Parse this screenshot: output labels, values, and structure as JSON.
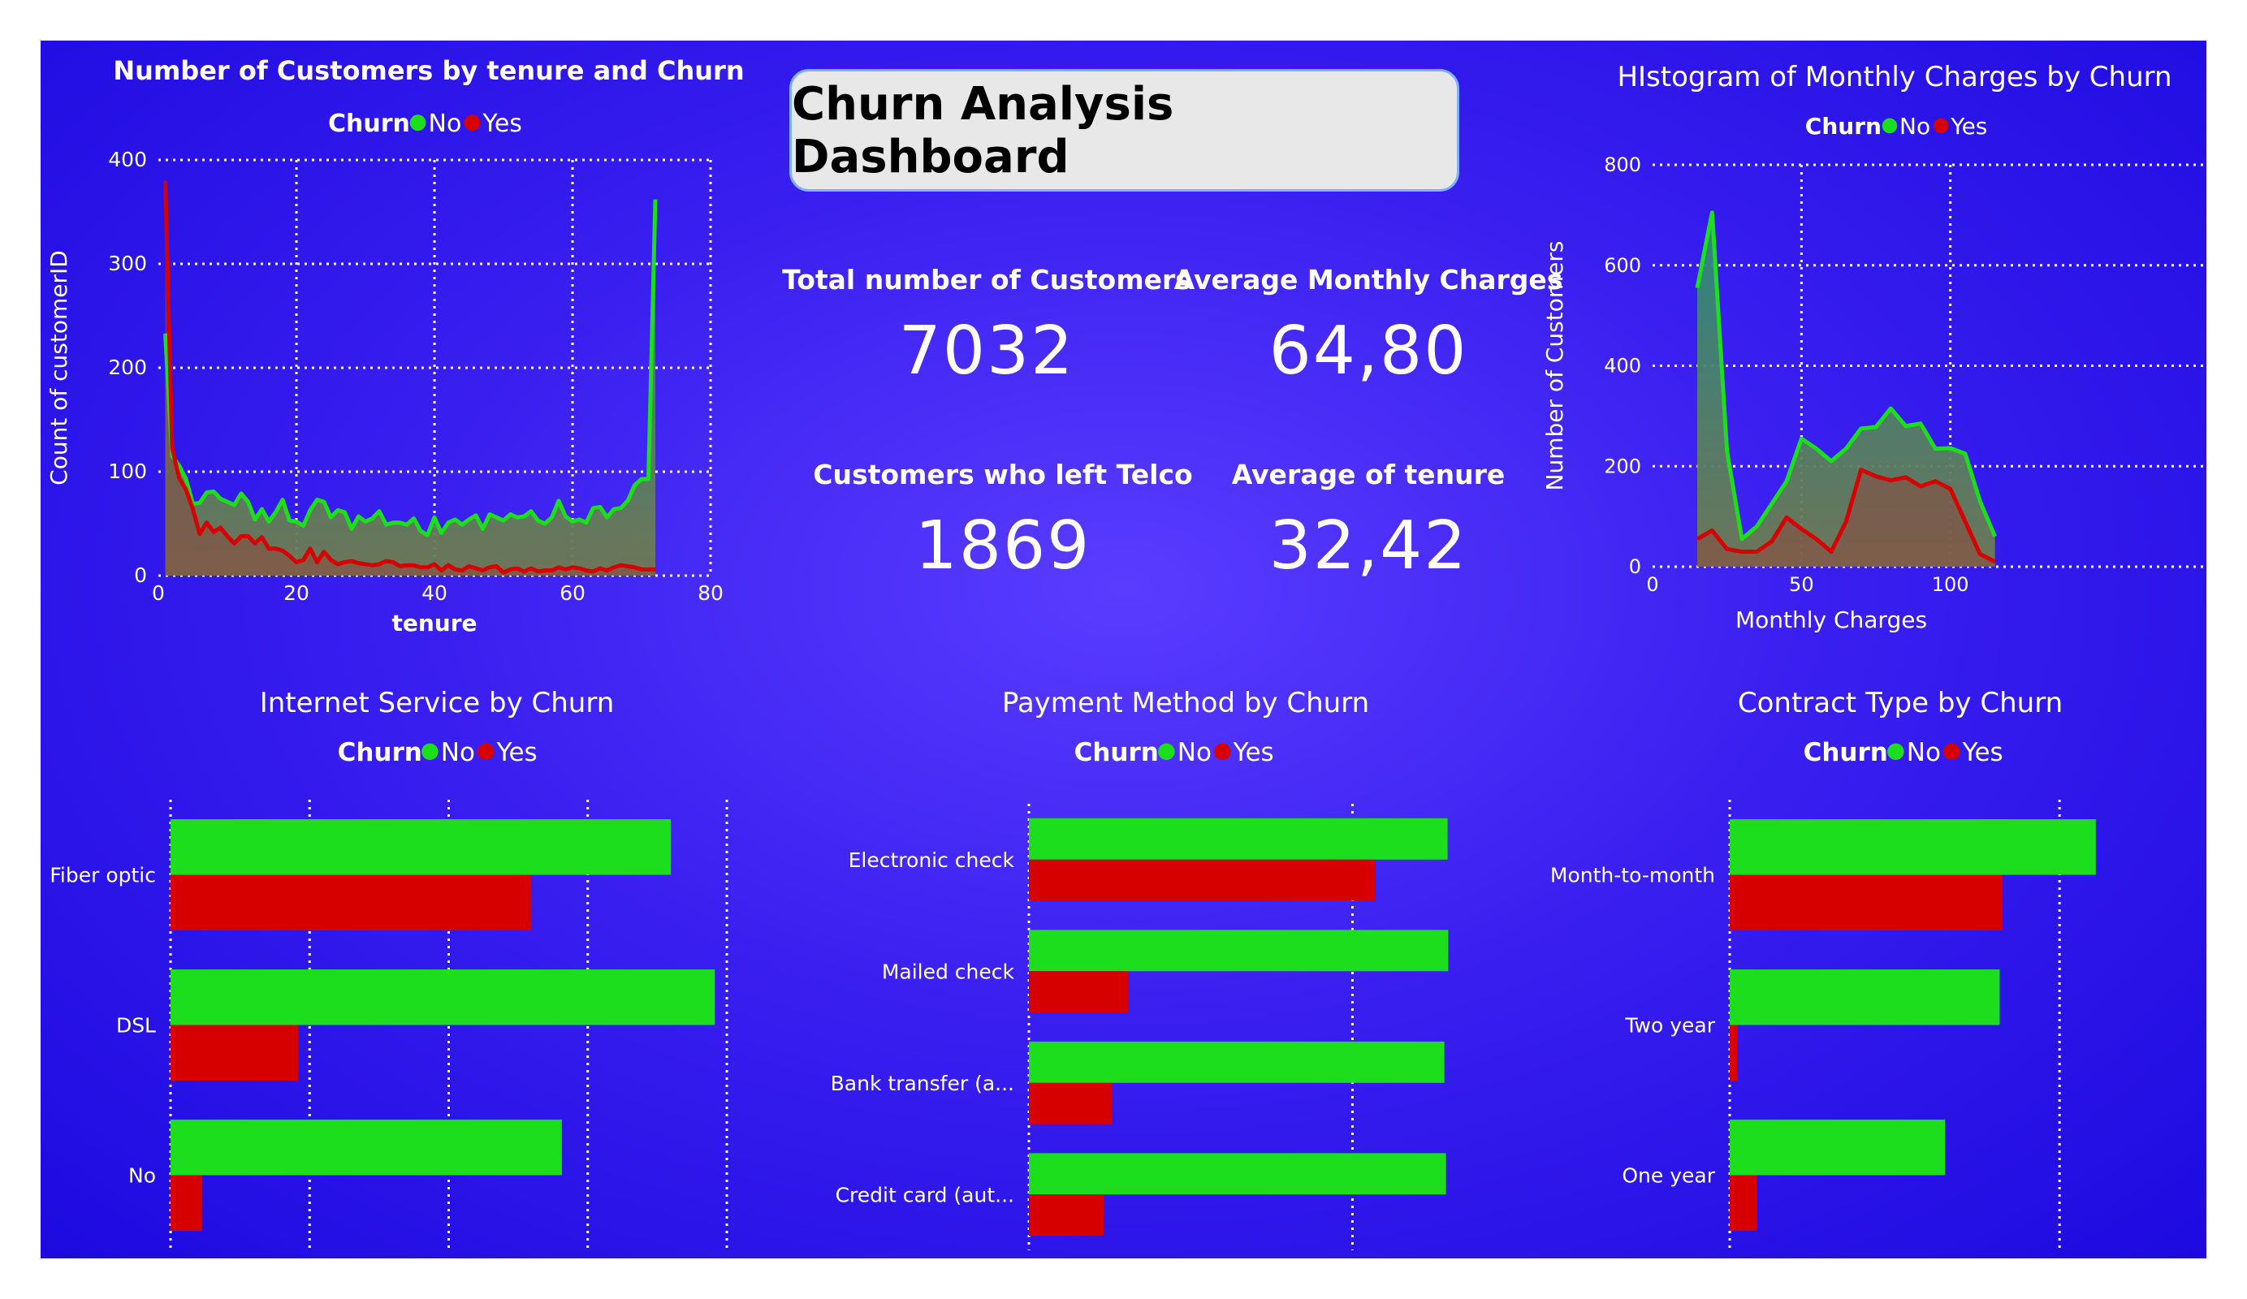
{
  "dashboard": {
    "title": "Churn Analysis Dashboard"
  },
  "colors": {
    "no": "#1cde1c",
    "yes": "#d60000",
    "background": "#3a1ff0"
  },
  "kpis": [
    {
      "label": "Total number of Customers",
      "value": "7032"
    },
    {
      "label": "Average Monthly Charges",
      "value": "64,80"
    },
    {
      "label": "Customers who left Telco",
      "value": "1869"
    },
    {
      "label": "Average of tenure",
      "value": "32,42"
    }
  ],
  "legend": {
    "title": "Churn",
    "no": "No",
    "yes": "Yes"
  },
  "chart_data": [
    {
      "id": "tenure",
      "type": "area",
      "title": "Number of Customers by tenure and Churn",
      "xlabel": "tenure",
      "ylabel": "Count of customerID",
      "xlim": [
        0,
        80
      ],
      "ylim": [
        0,
        400
      ],
      "xticks": [
        "0",
        "20",
        "40",
        "60",
        "80"
      ],
      "yticks": [
        "0",
        "100",
        "200",
        "300",
        "400"
      ],
      "x": [
        1,
        2,
        3,
        4,
        5,
        6,
        7,
        8,
        9,
        10,
        11,
        12,
        13,
        14,
        15,
        16,
        17,
        18,
        19,
        20,
        21,
        22,
        23,
        24,
        25,
        26,
        27,
        28,
        29,
        30,
        31,
        32,
        33,
        34,
        35,
        36,
        37,
        38,
        39,
        40,
        41,
        42,
        43,
        44,
        45,
        46,
        47,
        48,
        49,
        50,
        51,
        52,
        53,
        54,
        55,
        56,
        57,
        58,
        59,
        60,
        61,
        62,
        63,
        64,
        65,
        66,
        67,
        68,
        69,
        70,
        71,
        72
      ],
      "series": [
        {
          "name": "No",
          "values": [
            233,
            115,
            106,
            93,
            69,
            70,
            80,
            81,
            74,
            71,
            68,
            79,
            71,
            54,
            64,
            52,
            61,
            73,
            53,
            52,
            48,
            63,
            73,
            71,
            56,
            63,
            61,
            45,
            57,
            52,
            55,
            62,
            49,
            51,
            51,
            49,
            55,
            43,
            39,
            56,
            41,
            51,
            54,
            49,
            54,
            58,
            45,
            59,
            56,
            53,
            59,
            56,
            57,
            62,
            53,
            50,
            56,
            72,
            57,
            52,
            54,
            51,
            65,
            66,
            56,
            64,
            65,
            72,
            87,
            93,
            93,
            362
          ]
        },
        {
          "name": "Yes",
          "values": [
            380,
            123,
            94,
            83,
            64,
            40,
            51,
            42,
            46,
            38,
            31,
            38,
            38,
            31,
            37,
            26,
            26,
            24,
            19,
            13,
            15,
            26,
            13,
            23,
            15,
            11,
            13,
            14,
            12,
            11,
            10,
            11,
            14,
            13,
            9,
            10,
            10,
            8,
            8,
            11,
            5,
            10,
            6,
            5,
            9,
            7,
            5,
            8,
            9,
            3,
            6,
            7,
            4,
            7,
            4,
            5,
            5,
            8,
            6,
            8,
            7,
            5,
            4,
            7,
            5,
            8,
            10,
            9,
            8,
            6,
            6,
            6
          ]
        }
      ],
      "legend_position": "top"
    },
    {
      "id": "monthly",
      "type": "area",
      "title": "HIstogram of Monthly Charges by Churn",
      "xlabel": "Monthly Charges",
      "ylabel": "Number of Customers",
      "xlim": [
        0,
        120
      ],
      "ylim": [
        0,
        800
      ],
      "xticks": [
        "0",
        "50",
        "100"
      ],
      "yticks": [
        "0",
        "200",
        "400",
        "600",
        "800"
      ],
      "x": [
        15,
        20,
        25,
        30,
        35,
        40,
        45,
        50,
        55,
        60,
        65,
        70,
        75,
        80,
        85,
        90,
        95,
        100,
        105,
        110,
        115
      ],
      "series": [
        {
          "name": "No",
          "values": [
            555,
            705,
            230,
            55,
            80,
            125,
            170,
            255,
            235,
            210,
            235,
            275,
            278,
            315,
            280,
            285,
            235,
            236,
            225,
            130,
            60
          ]
        },
        {
          "name": "Yes",
          "values": [
            55,
            72,
            35,
            30,
            30,
            50,
            98,
            75,
            55,
            30,
            90,
            193,
            180,
            172,
            178,
            160,
            170,
            155,
            90,
            25,
            10
          ]
        }
      ],
      "legend_position": "top"
    },
    {
      "id": "internet",
      "type": "bar",
      "title": "Internet Service by Churn",
      "categories": [
        "Fiber optic",
        "DSL",
        "No"
      ],
      "xlim": [
        0,
        2000
      ],
      "xticks": [
        "0,0K",
        "0,5K",
        "1,0K",
        "1,5K",
        "2,0K"
      ],
      "series": [
        {
          "name": "No",
          "values": [
            1799,
            1957,
            1407
          ]
        },
        {
          "name": "Yes",
          "values": [
            1297,
            459,
            113
          ]
        }
      ],
      "legend_position": "top"
    },
    {
      "id": "payment",
      "type": "bar",
      "title": "Payment Method by Churn",
      "categories": [
        "Electronic check",
        "Mailed check",
        "Bank transfer (a...",
        "Credit card (aut..."
      ],
      "xlim": [
        0,
        1300
      ],
      "xticks": [
        "0,0K",
        "1,0K"
      ],
      "series": [
        {
          "name": "No",
          "values": [
            1294,
            1296,
            1284,
            1289
          ]
        },
        {
          "name": "Yes",
          "values": [
            1071,
            308,
            258,
            232
          ]
        }
      ],
      "legend_position": "top"
    },
    {
      "id": "contract",
      "type": "bar",
      "title": "Contract Type by Churn",
      "categories": [
        "Month-to-month",
        "Two year",
        "One year"
      ],
      "xlim": [
        0,
        2600
      ],
      "xticks": [
        "0,0K",
        "2,0K"
      ],
      "series": [
        {
          "name": "No",
          "values": [
            2220,
            1637,
            1306
          ]
        },
        {
          "name": "Yes",
          "values": [
            1655,
            48,
            166
          ]
        }
      ],
      "legend_position": "top"
    }
  ]
}
